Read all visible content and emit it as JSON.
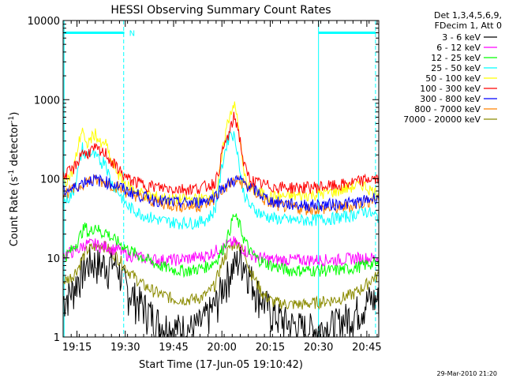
{
  "chart_data": {
    "type": "line",
    "title": "HESSI Observing Summary Count Rates",
    "xlabel": "Start Time (17-Jun-05 19:10:42)",
    "ylabel_main": "Count Rate (s",
    "ylabel_sup1": "-1",
    "ylabel_mid": " detector",
    "ylabel_sup2": "-1",
    "ylabel_end": ")",
    "yscale": "log",
    "xlim_minutes": [
      0,
      98
    ],
    "ylim": [
      1,
      10000
    ],
    "xticks": [
      {
        "label": "19:15",
        "minute": 4.3
      },
      {
        "label": "19:30",
        "minute": 19.3
      },
      {
        "label": "19:45",
        "minute": 34.3
      },
      {
        "label": "20:00",
        "minute": 49.3
      },
      {
        "label": "20:15",
        "minute": 64.3
      },
      {
        "label": "20:30",
        "minute": 79.3
      },
      {
        "label": "20:45",
        "minute": 94.3
      }
    ],
    "yticks": [
      {
        "label": "1",
        "value": 1
      },
      {
        "label": "10",
        "value": 10
      },
      {
        "label": "100",
        "value": 100
      },
      {
        "label": "1000",
        "value": 1000
      },
      {
        "label": "10000",
        "value": 10000
      }
    ],
    "legend_header": [
      "Det 1,3,4,5,6,9,",
      "FDecim 1, Att 0"
    ],
    "legend_placement": "right",
    "footer_date": "29-Mar-2010 21:20",
    "night_bars": [
      {
        "start": 0.2,
        "end": 19.0
      },
      {
        "start": 79.3,
        "end": 97.0
      }
    ],
    "saa_lines": [
      0.3,
      18.8,
      79.3,
      97.0
    ],
    "saa_dashed": [
      false,
      true,
      false,
      true
    ],
    "flag_label": {
      "text": "N",
      "minute": 20.0
    },
    "x_minutes": [
      0,
      3,
      5,
      6,
      7,
      8,
      10,
      12,
      13,
      14,
      15,
      17,
      18,
      20,
      25,
      30,
      35,
      40,
      43,
      45,
      47,
      48,
      49,
      50,
      51,
      52,
      53,
      54,
      55,
      56,
      57,
      58,
      60,
      62,
      65,
      70,
      75,
      80,
      85,
      90,
      93,
      95,
      96,
      98
    ],
    "series": [
      {
        "name": "3 - 6 keV",
        "color": "#000000",
        "values": [
          3,
          4,
          6,
          7,
          8,
          9,
          9,
          8,
          9,
          8,
          9,
          8,
          6,
          4,
          2.5,
          1.5,
          1.3,
          1.3,
          1.5,
          2,
          2.5,
          3,
          4,
          5,
          6,
          7,
          8,
          9,
          10,
          9,
          8,
          6,
          4,
          3,
          2,
          1.5,
          1.3,
          1.3,
          1.5,
          2,
          2.5,
          3,
          3,
          3
        ]
      },
      {
        "name": "6 - 12 keV",
        "color": "#ff00ff",
        "values": [
          11,
          12,
          13,
          14,
          15,
          15,
          15,
          14,
          14,
          14,
          13,
          13,
          12,
          11,
          10,
          9.5,
          9.5,
          10,
          10.5,
          11,
          12,
          13,
          13,
          14,
          15,
          15,
          16,
          15,
          14,
          13,
          12,
          11,
          10.5,
          10,
          9.5,
          9.5,
          9.5,
          9.5,
          9.5,
          10,
          10,
          10,
          10,
          10
        ]
      },
      {
        "name": "12 - 25 keV",
        "color": "#00ff00",
        "values": [
          10,
          13,
          18,
          22,
          25,
          20,
          26,
          20,
          22,
          20,
          18,
          16,
          15,
          13,
          10,
          8,
          7,
          7,
          7.5,
          8,
          9,
          10,
          12,
          14,
          18,
          25,
          35,
          30,
          25,
          18,
          15,
          12,
          10,
          9,
          8,
          7,
          7,
          7,
          7,
          7.5,
          8,
          8.5,
          8.5,
          8
        ]
      },
      {
        "name": "25 - 50 keV",
        "color": "#00ffff",
        "values": [
          50,
          65,
          150,
          250,
          180,
          220,
          190,
          160,
          180,
          120,
          90,
          70,
          60,
          45,
          35,
          30,
          28,
          28,
          29,
          32,
          40,
          60,
          120,
          200,
          300,
          400,
          350,
          250,
          120,
          70,
          55,
          45,
          40,
          35,
          32,
          30,
          30,
          31,
          32,
          35,
          40,
          38,
          35,
          33
        ]
      },
      {
        "name": "50 - 100 keV",
        "color": "#ffff00",
        "values": [
          90,
          120,
          300,
          450,
          250,
          300,
          380,
          250,
          300,
          220,
          160,
          120,
          100,
          80,
          65,
          58,
          55,
          55,
          56,
          58,
          65,
          80,
          150,
          300,
          500,
          700,
          900,
          600,
          300,
          120,
          90,
          75,
          70,
          65,
          60,
          60,
          62,
          65,
          70,
          80,
          85,
          75,
          70,
          65
        ]
      },
      {
        "name": "100 - 300 keV",
        "color": "#ff0000",
        "values": [
          110,
          130,
          180,
          230,
          200,
          220,
          240,
          210,
          220,
          190,
          160,
          140,
          120,
          100,
          85,
          78,
          75,
          75,
          78,
          82,
          90,
          110,
          180,
          260,
          330,
          420,
          600,
          500,
          300,
          160,
          120,
          100,
          90,
          85,
          80,
          78,
          78,
          80,
          82,
          90,
          95,
          100,
          100,
          98
        ]
      },
      {
        "name": "300 - 800 keV",
        "color": "#0000ff",
        "values": [
          70,
          75,
          85,
          90,
          95,
          97,
          97,
          95,
          93,
          90,
          87,
          82,
          78,
          70,
          60,
          53,
          50,
          50,
          52,
          55,
          60,
          68,
          75,
          80,
          85,
          90,
          95,
          97,
          95,
          90,
          85,
          80,
          70,
          60,
          52,
          48,
          47,
          47,
          48,
          50,
          52,
          55,
          57,
          60
        ]
      },
      {
        "name": "800 - 7000 keV",
        "color": "#ff8000",
        "values": [
          65,
          72,
          82,
          88,
          92,
          95,
          95,
          93,
          92,
          88,
          85,
          80,
          75,
          68,
          57,
          50,
          46,
          45,
          46,
          50,
          55,
          62,
          70,
          76,
          82,
          88,
          92,
          95,
          93,
          88,
          82,
          76,
          66,
          56,
          48,
          44,
          42,
          42,
          43,
          46,
          50,
          53,
          55,
          57
        ]
      },
      {
        "name": "7000 - 20000 keV",
        "color": "#8b8b00",
        "values": [
          5,
          6,
          8,
          10,
          12,
          13,
          14,
          15,
          14,
          13,
          12,
          10,
          9,
          7,
          4.5,
          3.5,
          3,
          3,
          3.2,
          3.6,
          4.5,
          6,
          8,
          10,
          12,
          14,
          15,
          16,
          14,
          12,
          10,
          7,
          5,
          3.5,
          2.8,
          2.6,
          2.6,
          2.8,
          3,
          3.5,
          4.2,
          5,
          5.5,
          6
        ]
      }
    ]
  }
}
